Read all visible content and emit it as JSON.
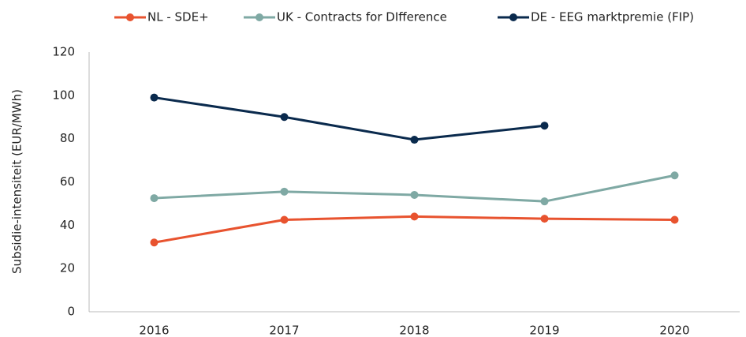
{
  "chart_data": {
    "type": "line",
    "y_label": "Subsidie-intensiteit (EUR/MWh)",
    "categories": [
      "2016",
      "2017",
      "2018",
      "2019",
      "2020"
    ],
    "series": [
      {
        "name": "NL - SDE+",
        "color": "#e8532f",
        "values": [
          32,
          42.5,
          44,
          43,
          42.5
        ]
      },
      {
        "name": "UK - Contracts for DIfference",
        "color": "#7fa9a4",
        "values": [
          52.5,
          55.5,
          54,
          51,
          63
        ]
      },
      {
        "name": "DE - EEG marktpremie (FIP)",
        "color": "#0a2a4d",
        "values": [
          99,
          90,
          79.5,
          86,
          null
        ]
      }
    ],
    "ylim": [
      0,
      120
    ],
    "yticks": [
      0,
      20,
      40,
      60,
      80,
      100,
      120
    ],
    "grid": false,
    "legend": "top"
  }
}
